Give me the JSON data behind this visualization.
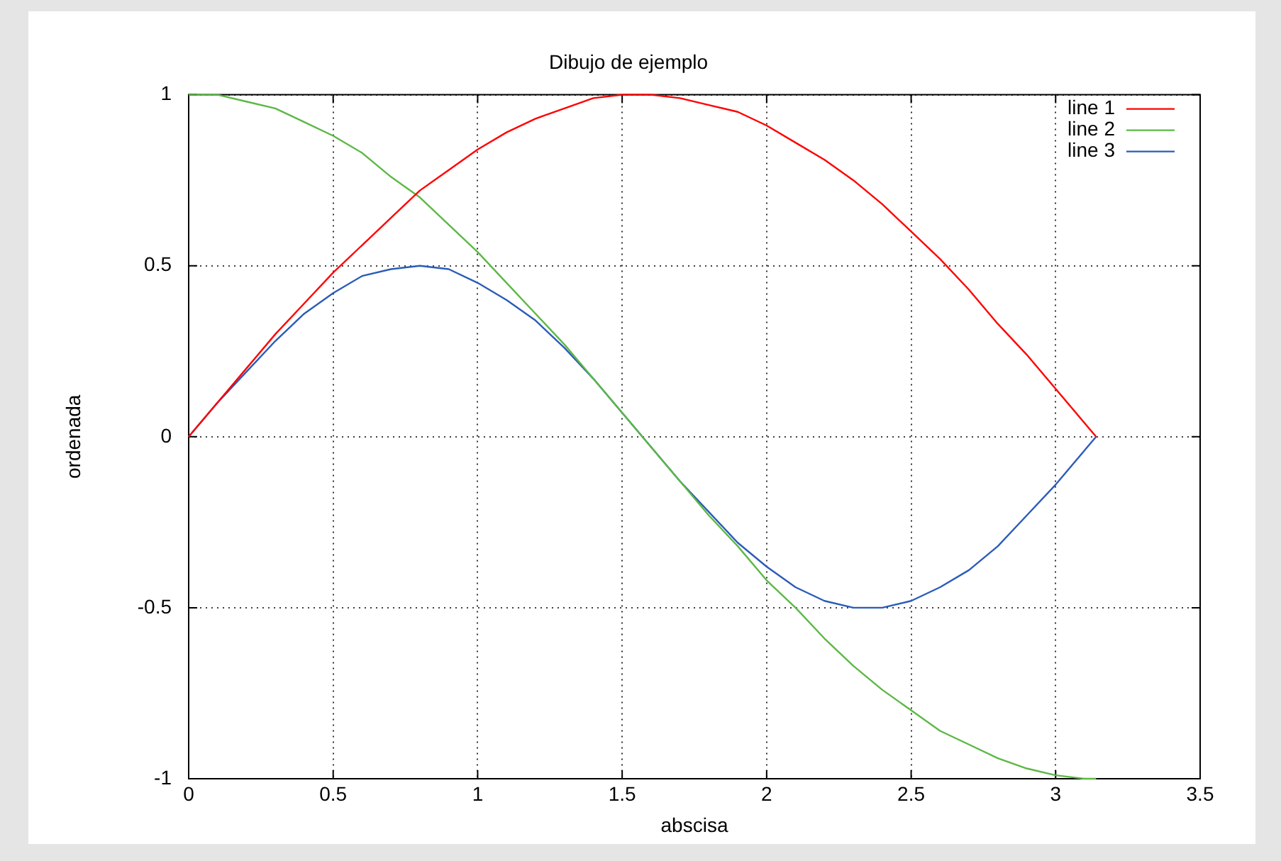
{
  "chart_data": {
    "type": "line",
    "title": "Dibujo de ejemplo",
    "xlabel": "abscisa",
    "ylabel": "ordenada",
    "x": [
      0,
      0.1,
      0.2,
      0.3,
      0.4,
      0.5,
      0.6,
      0.7,
      0.8,
      0.9,
      1.0,
      1.1,
      1.2,
      1.3,
      1.4,
      1.5,
      1.6,
      1.7,
      1.8,
      1.9,
      2.0,
      2.1,
      2.2,
      2.3,
      2.4,
      2.5,
      2.6,
      2.7,
      2.8,
      2.9,
      3.0,
      3.1,
      3.14
    ],
    "series": [
      {
        "name": "line 1",
        "color": "#ff0000",
        "values": [
          0,
          0.1,
          0.2,
          0.3,
          0.39,
          0.48,
          0.56,
          0.64,
          0.72,
          0.78,
          0.84,
          0.89,
          0.93,
          0.96,
          0.99,
          1.0,
          1.0,
          0.99,
          0.97,
          0.95,
          0.91,
          0.86,
          0.81,
          0.75,
          0.68,
          0.6,
          0.52,
          0.43,
          0.33,
          0.24,
          0.14,
          0.04,
          0
        ]
      },
      {
        "name": "line 2",
        "color": "#5cb845",
        "values": [
          1,
          1.0,
          0.98,
          0.96,
          0.92,
          0.88,
          0.83,
          0.76,
          0.7,
          0.62,
          0.54,
          0.45,
          0.36,
          0.27,
          0.17,
          0.07,
          -0.03,
          -0.13,
          -0.23,
          -0.32,
          -0.42,
          -0.5,
          -0.59,
          -0.67,
          -0.74,
          -0.8,
          -0.86,
          -0.9,
          -0.94,
          -0.97,
          -0.99,
          -1.0,
          -1
        ]
      },
      {
        "name": "line 3",
        "color": "#2a5cb8",
        "values": [
          0,
          0.1,
          0.19,
          0.28,
          0.36,
          0.42,
          0.47,
          0.49,
          0.5,
          0.49,
          0.45,
          0.4,
          0.34,
          0.26,
          0.17,
          0.07,
          -0.03,
          -0.13,
          -0.22,
          -0.31,
          -0.38,
          -0.44,
          -0.48,
          -0.5,
          -0.5,
          -0.48,
          -0.44,
          -0.39,
          -0.32,
          -0.23,
          -0.14,
          -0.04,
          0
        ]
      }
    ],
    "xlim": [
      0,
      3.5
    ],
    "xticks": [
      0,
      0.5,
      1,
      1.5,
      2,
      2.5,
      3,
      3.5
    ],
    "ylim": [
      -1,
      1
    ],
    "yticks": [
      -1,
      -0.5,
      0,
      0.5,
      1
    ],
    "grid": true,
    "legend": "top right",
    "marker": "none",
    "line_style": "solid"
  }
}
